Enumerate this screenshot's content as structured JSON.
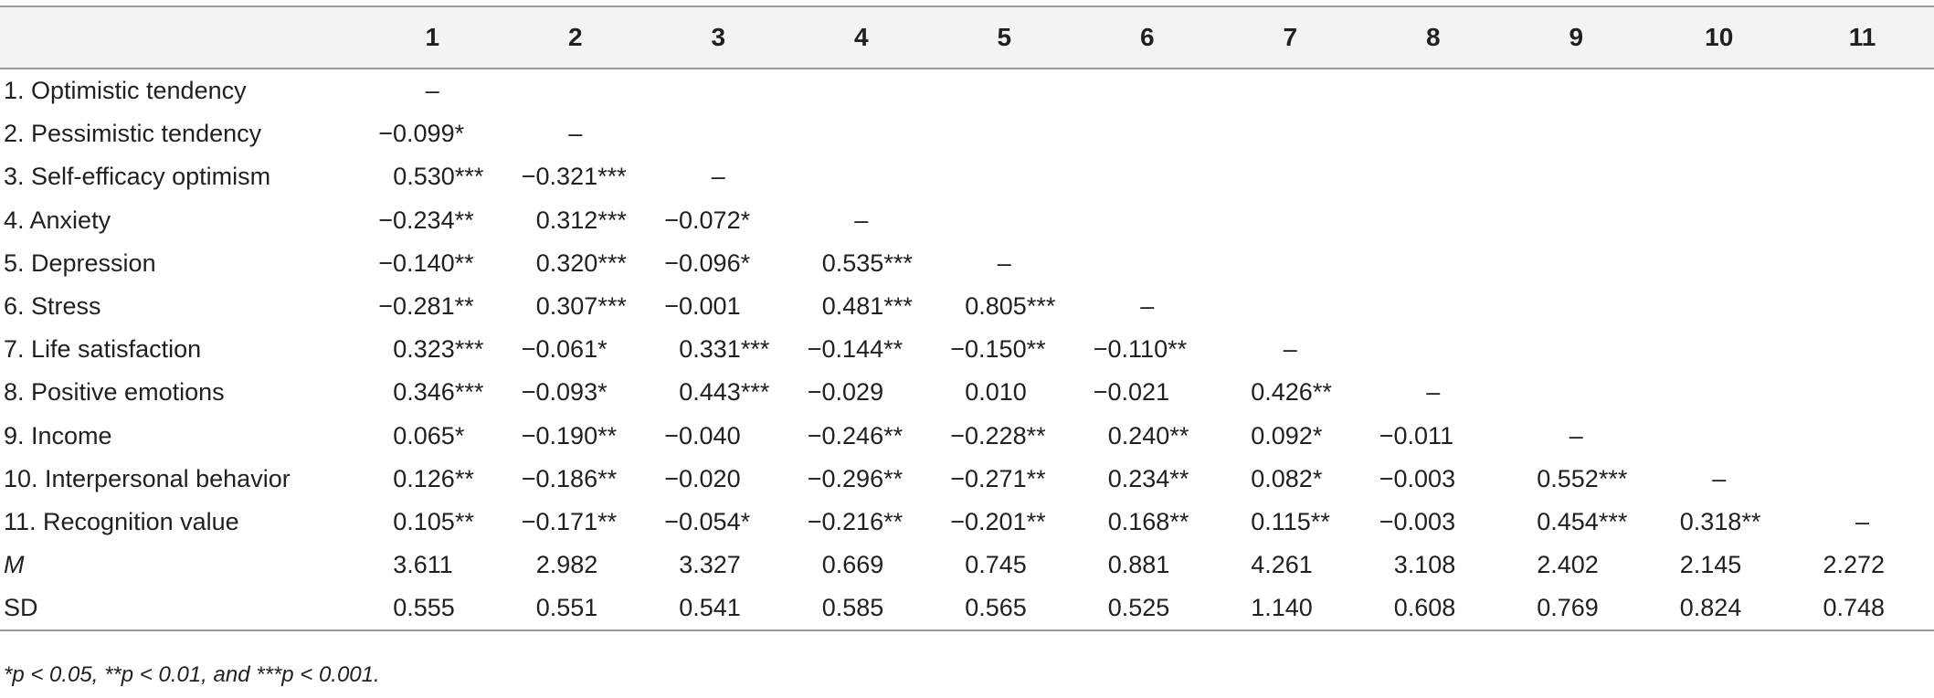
{
  "table": {
    "columns": [
      "",
      "1",
      "2",
      "3",
      "4",
      "5",
      "6",
      "7",
      "8",
      "9",
      "10",
      "11"
    ],
    "rows": [
      {
        "label": "1. Optimistic tendency",
        "italic": false,
        "cells": [
          "–",
          "",
          "",
          "",
          "",
          "",
          "",
          "",
          "",
          "",
          ""
        ]
      },
      {
        "label": "2. Pessimistic tendency",
        "italic": false,
        "cells": [
          "−0.099*",
          "–",
          "",
          "",
          "",
          "",
          "",
          "",
          "",
          "",
          ""
        ]
      },
      {
        "label": "3. Self-efficacy optimism",
        "italic": false,
        "cells": [
          "0.530***",
          "−0.321***",
          "–",
          "",
          "",
          "",
          "",
          "",
          "",
          "",
          ""
        ]
      },
      {
        "label": "4. Anxiety",
        "italic": false,
        "cells": [
          "−0.234**",
          "0.312***",
          "−0.072*",
          "–",
          "",
          "",
          "",
          "",
          "",
          "",
          ""
        ]
      },
      {
        "label": "5. Depression",
        "italic": false,
        "cells": [
          "−0.140**",
          "0.320***",
          "−0.096*",
          "0.535***",
          "–",
          "",
          "",
          "",
          "",
          "",
          ""
        ]
      },
      {
        "label": "6. Stress",
        "italic": false,
        "cells": [
          "−0.281**",
          "0.307***",
          "−0.001",
          "0.481***",
          "0.805***",
          "–",
          "",
          "",
          "",
          "",
          ""
        ]
      },
      {
        "label": "7. Life satisfaction",
        "italic": false,
        "cells": [
          "0.323***",
          "−0.061*",
          "0.331***",
          "−0.144**",
          "−0.150**",
          "−0.110**",
          "–",
          "",
          "",
          "",
          ""
        ]
      },
      {
        "label": "8. Positive emotions",
        "italic": false,
        "cells": [
          "0.346***",
          "−0.093*",
          "0.443***",
          "−0.029",
          "0.010",
          "−0.021",
          "0.426**",
          "–",
          "",
          "",
          ""
        ]
      },
      {
        "label": "9. Income",
        "italic": false,
        "cells": [
          "0.065*",
          "−0.190**",
          "−0.040",
          "−0.246**",
          "−0.228**",
          "0.240**",
          "0.092*",
          "−0.011",
          "–",
          "",
          ""
        ]
      },
      {
        "label": "10. Interpersonal behavior",
        "italic": false,
        "cells": [
          "0.126**",
          "−0.186**",
          "−0.020",
          "−0.296**",
          "−0.271**",
          "0.234**",
          "0.082*",
          "−0.003",
          "0.552***",
          "–",
          ""
        ]
      },
      {
        "label": "11. Recognition value",
        "italic": false,
        "cells": [
          "0.105**",
          "−0.171**",
          "−0.054*",
          "−0.216**",
          "−0.201**",
          "0.168**",
          "0.115**",
          "−0.003",
          "0.454***",
          "0.318**",
          "–"
        ]
      },
      {
        "label": "M",
        "italic": true,
        "cells": [
          "3.611",
          "2.982",
          "3.327",
          "0.669",
          "0.745",
          "0.881",
          "4.261",
          "3.108",
          "2.402",
          "2.145",
          "2.272"
        ]
      },
      {
        "label": "SD",
        "italic": false,
        "cells": [
          "0.555",
          "0.551",
          "0.541",
          "0.585",
          "0.565",
          "0.525",
          "1.140",
          "0.608",
          "0.769",
          "0.824",
          "0.748"
        ]
      }
    ]
  },
  "footnote": "*p < 0.05, **p < 0.01, and ***p < 0.001."
}
